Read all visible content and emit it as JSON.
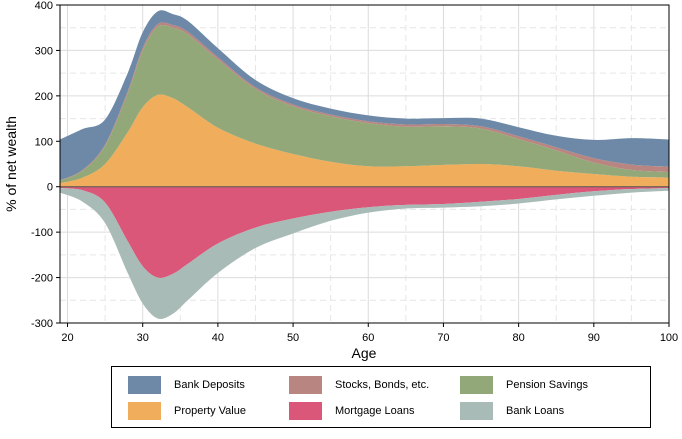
{
  "chart_data": {
    "type": "area",
    "title": "",
    "xlabel": "Age",
    "ylabel": "% of net wealth",
    "xlim": [
      19,
      100
    ],
    "ylim": [
      -300,
      400
    ],
    "x_ticks": [
      20,
      30,
      40,
      50,
      60,
      70,
      80,
      90,
      100
    ],
    "y_ticks": [
      -300,
      -200,
      -100,
      0,
      100,
      200,
      300,
      400
    ],
    "grid": true,
    "legend_position": "bottom",
    "x": [
      19,
      22,
      25,
      28,
      30,
      32,
      34,
      36,
      40,
      45,
      50,
      55,
      60,
      65,
      70,
      75,
      80,
      85,
      90,
      95,
      100
    ],
    "series": [
      {
        "name": "Property Value",
        "color": "#F0AD5B",
        "stack": "positive",
        "values": [
          8,
          20,
          50,
          120,
          175,
          202,
          195,
          175,
          130,
          95,
          72,
          55,
          45,
          45,
          48,
          50,
          45,
          35,
          28,
          22,
          20
        ]
      },
      {
        "name": "Pension Savings",
        "color": "#93A878",
        "stack": "positive",
        "values": [
          5,
          15,
          40,
          85,
          125,
          150,
          155,
          160,
          150,
          120,
          105,
          100,
          95,
          87,
          85,
          78,
          60,
          45,
          25,
          15,
          12
        ]
      },
      {
        "name": "Stocks, Bonds, etc.",
        "color": "#B98581",
        "stack": "positive",
        "values": [
          1,
          2,
          3,
          5,
          6,
          6,
          6,
          6,
          5,
          4,
          4,
          4,
          4,
          5,
          5,
          5,
          6,
          7,
          10,
          12,
          12
        ]
      },
      {
        "name": "Bank Deposits",
        "color": "#6D89A7",
        "stack": "positive",
        "values": [
          90,
          90,
          55,
          40,
          34,
          28,
          24,
          24,
          20,
          16,
          14,
          13,
          13,
          13,
          13,
          17,
          20,
          25,
          40,
          58,
          60
        ]
      },
      {
        "name": "Mortgage Loans",
        "color": "#DB5779",
        "stack": "negative",
        "values": [
          -3,
          -8,
          -35,
          -120,
          -175,
          -200,
          -192,
          -170,
          -125,
          -90,
          -70,
          -55,
          -45,
          -40,
          -38,
          -33,
          -27,
          -18,
          -10,
          -5,
          -3
        ]
      },
      {
        "name": "Bank Loans",
        "color": "#A8BBB6",
        "stack": "negative",
        "values": [
          -10,
          -25,
          -45,
          -70,
          -82,
          -90,
          -88,
          -80,
          -65,
          -45,
          -33,
          -20,
          -12,
          -8,
          -8,
          -10,
          -10,
          -10,
          -10,
          -8,
          -6
        ]
      }
    ]
  },
  "legend": {
    "items": [
      {
        "label": "Bank Deposits",
        "color": "#6D89A7"
      },
      {
        "label": "Stocks, Bonds, etc.",
        "color": "#B98581"
      },
      {
        "label": "Pension Savings",
        "color": "#93A878"
      },
      {
        "label": "Property Value",
        "color": "#F0AD5B"
      },
      {
        "label": "Mortgage Loans",
        "color": "#DB5779"
      },
      {
        "label": "Bank Loans",
        "color": "#A8BBB6"
      }
    ]
  }
}
